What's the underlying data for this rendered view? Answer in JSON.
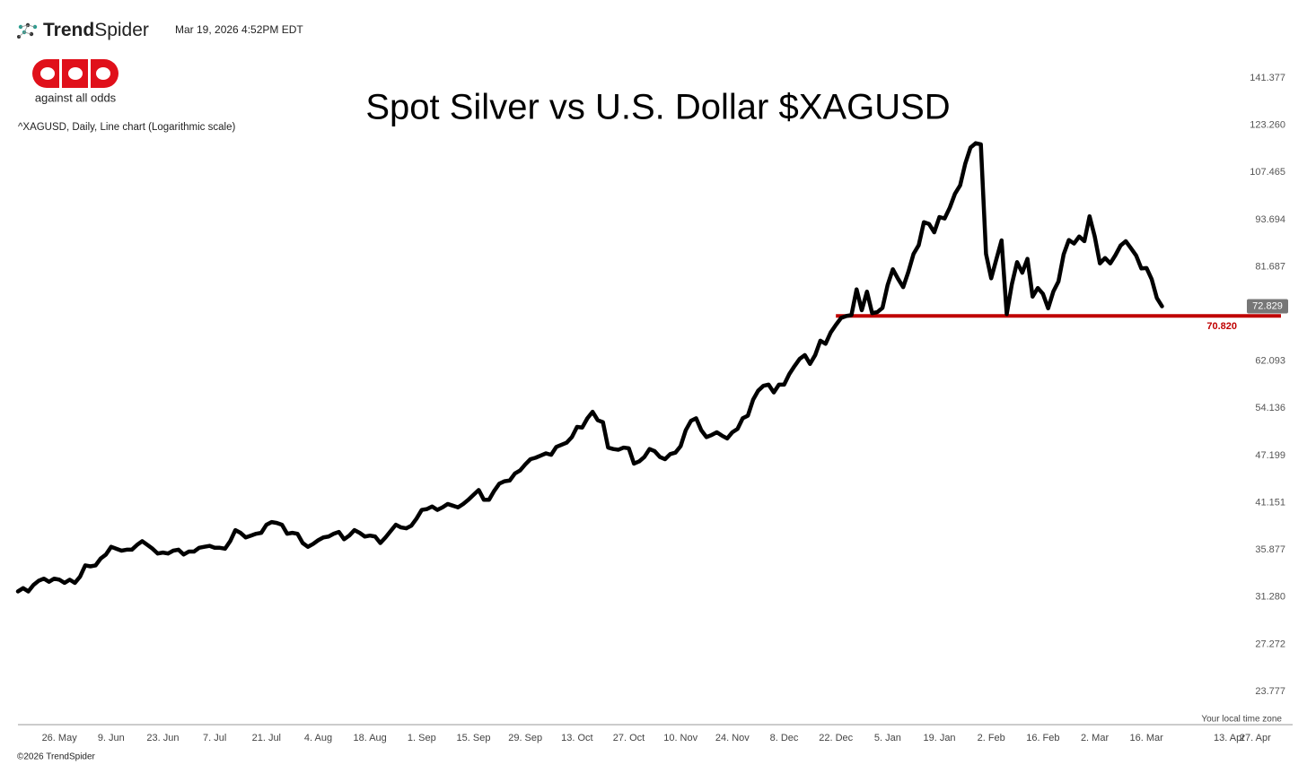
{
  "header": {
    "brand_bold": "Trend",
    "brand_light": "Spider",
    "timestamp": "Mar 19, 2026 4:52PM EDT",
    "logo_text": "against all odds"
  },
  "footer": {
    "timezone_note": "Your local time zone",
    "copyright": "©2026 TrendSpider"
  },
  "chart_data": {
    "type": "line",
    "title": "Spot Silver vs U.S. Dollar $XAGUSD",
    "subtitle": "^XAGUSD, Daily, Line chart (Logarithmic scale)",
    "log_scale": true,
    "grid": false,
    "color": "#000000",
    "categories": [
      null,
      null,
      null,
      null,
      null,
      null,
      null,
      null,
      "26. May",
      null,
      null,
      null,
      null,
      null,
      null,
      null,
      null,
      null,
      "9. Jun",
      null,
      null,
      null,
      null,
      null,
      null,
      null,
      null,
      null,
      "23. Jun",
      null,
      null,
      null,
      null,
      null,
      null,
      null,
      null,
      null,
      "7. Jul",
      null,
      null,
      null,
      null,
      null,
      null,
      null,
      null,
      null,
      "21. Jul",
      null,
      null,
      null,
      null,
      null,
      null,
      null,
      null,
      null,
      "4. Aug",
      null,
      null,
      null,
      null,
      null,
      null,
      null,
      null,
      null,
      "18. Aug",
      null,
      null,
      null,
      null,
      null,
      null,
      null,
      null,
      null,
      "1. Sep",
      null,
      null,
      null,
      null,
      null,
      null,
      null,
      null,
      null,
      "15. Sep",
      null,
      null,
      null,
      null,
      null,
      null,
      null,
      null,
      null,
      "29. Sep",
      null,
      null,
      null,
      null,
      null,
      null,
      null,
      null,
      null,
      "13. Oct",
      null,
      null,
      null,
      null,
      null,
      null,
      null,
      null,
      null,
      "27. Oct",
      null,
      null,
      null,
      null,
      null,
      null,
      null,
      null,
      null,
      "10. Nov",
      null,
      null,
      null,
      null,
      null,
      null,
      null,
      null,
      null,
      "24. Nov",
      null,
      null,
      null,
      null,
      null,
      null,
      null,
      null,
      null,
      "8. Dec",
      null,
      null,
      null,
      null,
      null,
      null,
      null,
      null,
      null,
      "22. Dec",
      null,
      null,
      null,
      null,
      null,
      null,
      null,
      null,
      null,
      "5. Jan",
      null,
      null,
      null,
      null,
      null,
      null,
      null,
      null,
      null,
      "19. Jan",
      null,
      null,
      null,
      null,
      null,
      null,
      null,
      null,
      null,
      "2. Feb",
      null,
      null,
      null,
      null,
      null,
      null,
      null,
      null,
      null,
      "16. Feb",
      null,
      null,
      null,
      null,
      null,
      null,
      null,
      null,
      null,
      "2. Mar",
      null,
      null,
      null,
      null,
      null,
      null,
      null,
      null,
      null,
      "16. Mar",
      null,
      null,
      null,
      null,
      null,
      null,
      null,
      null,
      null,
      null,
      null,
      null,
      null,
      null,
      null,
      "13. Apr",
      null,
      null,
      null,
      null,
      "27. Apr"
    ],
    "values": [
      31.8,
      32.1,
      31.8,
      32.4,
      32.8,
      33.0,
      32.7,
      33.0,
      32.9,
      32.6,
      32.9,
      32.6,
      33.2,
      34.3,
      34.2,
      34.3,
      35.0,
      35.4,
      36.2,
      36.0,
      35.8,
      35.9,
      35.9,
      36.4,
      36.8,
      36.4,
      36.0,
      35.5,
      35.6,
      35.5,
      35.8,
      35.9,
      35.4,
      35.7,
      35.7,
      36.1,
      36.2,
      36.3,
      36.1,
      36.1,
      36.0,
      36.8,
      38.0,
      37.7,
      37.2,
      37.4,
      37.6,
      37.7,
      38.6,
      38.9,
      38.8,
      38.6,
      37.6,
      37.7,
      37.6,
      36.6,
      36.2,
      36.5,
      36.9,
      37.2,
      37.3,
      37.6,
      37.8,
      37.0,
      37.4,
      38.0,
      37.7,
      37.3,
      37.4,
      37.3,
      36.6,
      37.2,
      37.9,
      38.6,
      38.3,
      38.2,
      38.5,
      39.3,
      40.3,
      40.4,
      40.7,
      40.3,
      40.6,
      41.0,
      40.8,
      40.6,
      41.0,
      41.5,
      42.1,
      42.7,
      41.5,
      41.5,
      42.6,
      43.5,
      43.8,
      43.9,
      44.8,
      45.2,
      46.0,
      46.7,
      46.9,
      47.2,
      47.5,
      47.3,
      48.4,
      48.7,
      49.0,
      49.8,
      51.3,
      51.2,
      52.6,
      53.6,
      52.3,
      52.0,
      48.3,
      48.1,
      48.0,
      48.3,
      48.2,
      46.1,
      46.4,
      47.0,
      48.1,
      47.8,
      47.0,
      46.7,
      47.4,
      47.6,
      48.5,
      50.8,
      52.2,
      52.6,
      50.8,
      49.8,
      50.1,
      50.5,
      50.0,
      49.6,
      50.5,
      51.0,
      52.6,
      53.0,
      55.5,
      57.0,
      57.8,
      58.0,
      56.7,
      58.0,
      58.0,
      59.8,
      61.2,
      62.5,
      63.2,
      61.6,
      63.2,
      65.9,
      65.3,
      67.5,
      69.0,
      70.4,
      70.8,
      71.0,
      76.5,
      72.0,
      76.0,
      71.4,
      71.6,
      72.5,
      77.5,
      81.1,
      78.9,
      77.0,
      80.5,
      84.8,
      87.0,
      93.0,
      92.5,
      90.3,
      94.4,
      94.0,
      97.0,
      101.0,
      103.5,
      110.3,
      115.5,
      117.0,
      116.6,
      84.8,
      79.0,
      83.5,
      88.2,
      71.2,
      77.7,
      82.8,
      80.3,
      83.6,
      74.9,
      76.8,
      75.5,
      72.4,
      76.0,
      78.3,
      84.7,
      88.3,
      87.4,
      89.2,
      88.0,
      94.6,
      89.2,
      82.5,
      83.8,
      82.5,
      84.5,
      86.9,
      88.0,
      86.2,
      84.4,
      81.3,
      81.4,
      78.8,
      74.6,
      72.829,
      null,
      null,
      null,
      null,
      null,
      null,
      null,
      null,
      null,
      null,
      null,
      null,
      null,
      null,
      null,
      null,
      null,
      null
    ],
    "ylim": [
      21.59,
      151.7
    ],
    "yticks": [
      141.377,
      {
        "value": 123.26,
        "label": "123.260"
      },
      107.465,
      93.694,
      81.687,
      62.093,
      54.136,
      47.199,
      41.151,
      35.877,
      {
        "value": 31.28,
        "label": "31.280"
      },
      27.272,
      23.777
    ],
    "last_price": 72.829,
    "last_price_color": "#777777",
    "support": {
      "value": 70.82,
      "label": "70.820"
    },
    "support_color": "#c00000"
  }
}
